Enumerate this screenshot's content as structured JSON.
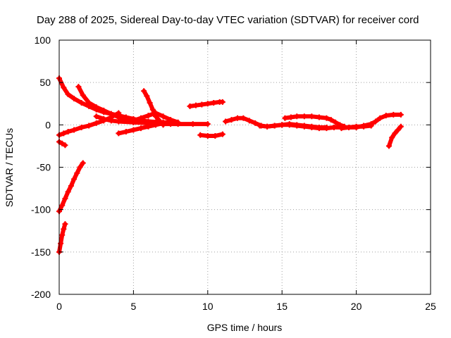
{
  "chart_data": {
    "type": "scatter",
    "title": "Day 288 of 2025, Sidereal Day-to-day VTEC variation (SDTVAR) for receiver cord",
    "xlabel": "GPS time / hours",
    "ylabel": "SDTVAR / TECUs",
    "xlim": [
      0,
      25
    ],
    "ylim": [
      -200,
      100
    ],
    "xticks": [
      0,
      5,
      10,
      15,
      20,
      25
    ],
    "yticks": [
      -200,
      -150,
      -100,
      -50,
      0,
      50,
      100
    ],
    "xtick_labels": [
      "0",
      "5",
      "10",
      "15",
      "20",
      "25"
    ],
    "ytick_labels": [
      "-200",
      "-150",
      "-100",
      "-50",
      "0",
      "50",
      "100"
    ],
    "grid": true,
    "legend": "none",
    "marker_color": "#ff0000",
    "marker": "plus",
    "series": [
      {
        "x": [
          0.0,
          0.3,
          0.6,
          1.0,
          1.5,
          2.0,
          2.5,
          3.0,
          3.5,
          4.0,
          4.5,
          5.0,
          5.5,
          6.0,
          6.5,
          7.0,
          7.5
        ],
        "y": [
          55,
          44,
          36,
          31,
          26,
          22,
          18,
          15,
          13,
          11,
          9,
          7,
          5,
          4,
          3,
          2,
          1
        ]
      },
      {
        "x": [
          1.3,
          1.6,
          2.0,
          2.5,
          3.0,
          3.5,
          4.0,
          5.0,
          6.0,
          7.0,
          8.0
        ],
        "y": [
          45,
          35,
          26,
          21,
          17,
          13,
          9,
          6,
          4,
          3,
          2
        ]
      },
      {
        "x": [
          0.0,
          0.3,
          0.6,
          1.0,
          1.5,
          2.0,
          2.5,
          3.0,
          3.5,
          4.0
        ],
        "y": [
          -12,
          -10,
          -8,
          -6,
          -3,
          -1,
          2,
          5,
          9,
          14
        ]
      },
      {
        "x": [
          0.0,
          0.2,
          0.4
        ],
        "y": [
          -20,
          -22,
          -24
        ]
      },
      {
        "x": [
          0.0,
          0.2,
          0.4,
          0.6,
          0.8,
          1.0,
          1.2,
          1.4,
          1.6
        ],
        "y": [
          -102,
          -95,
          -87,
          -79,
          -72,
          -64,
          -57,
          -50,
          -45
        ]
      },
      {
        "x": [
          0.0,
          0.1,
          0.2,
          0.3,
          0.4
        ],
        "y": [
          -150,
          -140,
          -130,
          -123,
          -117
        ]
      },
      {
        "x": [
          2.5,
          3.0,
          3.5,
          4.0,
          5.0,
          6.0,
          7.0,
          8.0,
          9.0,
          10.0
        ],
        "y": [
          10,
          7,
          5,
          4,
          3,
          2,
          1,
          1,
          1,
          1
        ]
      },
      {
        "x": [
          4.0,
          4.5,
          5.0,
          5.5,
          6.0,
          6.5,
          7.0,
          7.5
        ],
        "y": [
          -10,
          -8,
          -6,
          -4,
          -2,
          0,
          2,
          3
        ]
      },
      {
        "x": [
          5.0,
          5.5,
          6.0,
          6.5,
          7.0,
          7.5,
          8.0
        ],
        "y": [
          5,
          8,
          11,
          14,
          10,
          6,
          3
        ]
      },
      {
        "x": [
          5.7,
          5.9,
          6.1,
          6.3,
          6.5,
          6.8,
          7.0
        ],
        "y": [
          40,
          34,
          26,
          18,
          10,
          4,
          0
        ]
      },
      {
        "x": [
          8.8,
          9.2,
          9.6,
          10.0,
          10.4,
          10.8,
          11.0
        ],
        "y": [
          22,
          23,
          24,
          25,
          26,
          27,
          27
        ]
      },
      {
        "x": [
          9.5,
          10.0,
          10.5,
          11.0
        ],
        "y": [
          -12,
          -13,
          -13,
          -11
        ]
      },
      {
        "x": [
          11.2,
          11.6,
          12.0,
          12.4,
          12.8,
          13.2,
          13.6,
          14.0,
          14.5,
          15.0,
          15.5,
          16.0,
          16.5,
          17.0,
          17.5,
          18.0,
          18.5,
          19.0,
          19.5,
          20.0,
          20.5,
          21.0
        ],
        "y": [
          4,
          6,
          8,
          8,
          5,
          2,
          -1,
          -2,
          -1,
          0,
          0,
          -1,
          -2,
          -3,
          -4,
          -4,
          -3,
          -3,
          -3,
          -2,
          -2,
          -1
        ]
      },
      {
        "x": [
          15.2,
          15.6,
          16.0,
          16.5,
          17.0,
          17.5,
          18.0,
          18.3,
          18.6,
          18.9,
          19.2
        ],
        "y": [
          8,
          9,
          10,
          10,
          10,
          9,
          8,
          6,
          3,
          0,
          -2
        ]
      },
      {
        "x": [
          13.5,
          14.0,
          14.5,
          15.0,
          15.5,
          16.0,
          16.5,
          17.0,
          17.5,
          18.0
        ],
        "y": [
          -1,
          -2,
          -1,
          0,
          1,
          0,
          -1,
          -2,
          -3,
          -3
        ]
      },
      {
        "x": [
          19.0,
          19.5,
          20.0,
          20.5,
          21.0,
          21.3,
          21.6,
          22.0,
          22.5,
          23.0
        ],
        "y": [
          -4,
          -3,
          -3,
          -1,
          1,
          4,
          8,
          11,
          12,
          12
        ]
      },
      {
        "x": [
          22.2,
          22.4,
          22.6,
          22.8,
          23.0
        ],
        "y": [
          -25,
          -15,
          -10,
          -6,
          -2
        ]
      }
    ]
  }
}
